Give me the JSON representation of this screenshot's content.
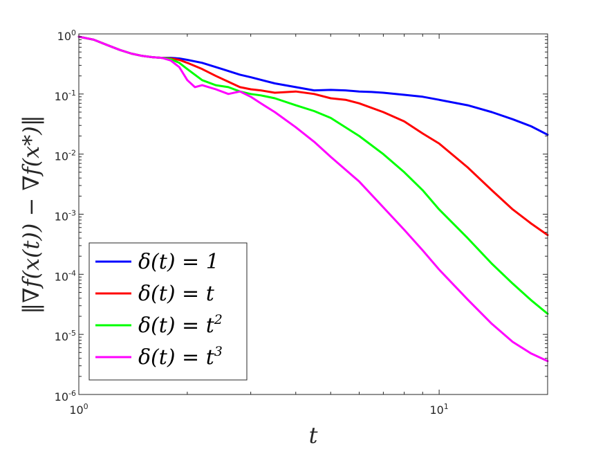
{
  "chart_data": {
    "type": "line",
    "xscale": "log",
    "yscale": "log",
    "xlim": [
      1,
      20
    ],
    "ylim": [
      1e-06,
      1
    ],
    "xlabel": "t",
    "ylabel": "‖∇f(x(t)) − ∇f(x*)‖",
    "grid": false,
    "legend_position": "bottom-left",
    "xticks": [
      {
        "value": 1,
        "base": "10",
        "exp": "0"
      },
      {
        "value": 10,
        "base": "10",
        "exp": "1"
      }
    ],
    "yticks": [
      {
        "value": 1,
        "base": "10",
        "exp": "0"
      },
      {
        "value": 0.1,
        "base": "10",
        "exp": "-1"
      },
      {
        "value": 0.01,
        "base": "10",
        "exp": "-2"
      },
      {
        "value": 0.001,
        "base": "10",
        "exp": "-3"
      },
      {
        "value": 0.0001,
        "base": "10",
        "exp": "-4"
      },
      {
        "value": 1e-05,
        "base": "10",
        "exp": "-5"
      },
      {
        "value": 1e-06,
        "base": "10",
        "exp": "-6"
      }
    ],
    "series": [
      {
        "name": "δ(t) = 1",
        "color": "#0000ff",
        "x": [
          1.0,
          1.1,
          1.2,
          1.3,
          1.4,
          1.5,
          1.6,
          1.7,
          1.8,
          1.9,
          2.0,
          2.2,
          2.5,
          2.8,
          3.0,
          3.5,
          4.0,
          4.5,
          5.0,
          5.5,
          6.0,
          6.5,
          7.0,
          8.0,
          9.0,
          10.0,
          12.0,
          14.0,
          16.0,
          18.0,
          20.0
        ],
        "y": [
          0.9,
          0.8,
          0.65,
          0.54,
          0.47,
          0.43,
          0.41,
          0.4,
          0.4,
          0.39,
          0.37,
          0.33,
          0.26,
          0.21,
          0.19,
          0.15,
          0.13,
          0.115,
          0.117,
          0.115,
          0.11,
          0.108,
          0.105,
          0.097,
          0.09,
          0.08,
          0.065,
          0.05,
          0.038,
          0.029,
          0.021
        ]
      },
      {
        "name": "δ(t) = t",
        "color": "#ff0000",
        "x": [
          1.0,
          1.1,
          1.2,
          1.3,
          1.4,
          1.5,
          1.6,
          1.7,
          1.8,
          1.9,
          2.0,
          2.2,
          2.4,
          2.6,
          2.8,
          3.0,
          3.2,
          3.5,
          4.0,
          4.5,
          5.0,
          5.5,
          6.0,
          7.0,
          8.0,
          9.0,
          10.0,
          12.0,
          14.0,
          16.0,
          18.0,
          20.0
        ],
        "y": [
          0.9,
          0.8,
          0.65,
          0.54,
          0.47,
          0.43,
          0.41,
          0.4,
          0.39,
          0.37,
          0.33,
          0.26,
          0.2,
          0.16,
          0.13,
          0.12,
          0.115,
          0.105,
          0.11,
          0.1,
          0.085,
          0.08,
          0.07,
          0.05,
          0.035,
          0.022,
          0.015,
          0.006,
          0.0025,
          0.0012,
          0.0007,
          0.00045
        ]
      },
      {
        "name": "δ(t) = t^2",
        "color": "#00ff00",
        "x": [
          1.0,
          1.1,
          1.2,
          1.3,
          1.4,
          1.5,
          1.6,
          1.7,
          1.8,
          1.9,
          2.0,
          2.2,
          2.4,
          2.6,
          2.8,
          3.0,
          3.2,
          3.5,
          4.0,
          4.5,
          5.0,
          6.0,
          7.0,
          8.0,
          9.0,
          10.0,
          12.0,
          14.0,
          16.0,
          18.0,
          20.0
        ],
        "y": [
          0.9,
          0.8,
          0.65,
          0.54,
          0.47,
          0.43,
          0.41,
          0.4,
          0.38,
          0.33,
          0.26,
          0.17,
          0.14,
          0.13,
          0.11,
          0.1,
          0.095,
          0.085,
          0.065,
          0.052,
          0.04,
          0.02,
          0.01,
          0.005,
          0.0025,
          0.0012,
          0.0004,
          0.00015,
          7e-05,
          3.7e-05,
          2.2e-05
        ]
      },
      {
        "name": "δ(t) = t^3",
        "color": "#ff00ff",
        "x": [
          1.0,
          1.1,
          1.2,
          1.3,
          1.4,
          1.5,
          1.6,
          1.7,
          1.8,
          1.9,
          2.0,
          2.1,
          2.2,
          2.4,
          2.6,
          2.8,
          3.0,
          3.2,
          3.5,
          4.0,
          4.5,
          5.0,
          6.0,
          7.0,
          8.0,
          9.0,
          10.0,
          12.0,
          14.0,
          16.0,
          18.0,
          20.0
        ],
        "y": [
          0.9,
          0.8,
          0.65,
          0.54,
          0.47,
          0.43,
          0.41,
          0.4,
          0.36,
          0.28,
          0.17,
          0.13,
          0.14,
          0.12,
          0.1,
          0.11,
          0.09,
          0.07,
          0.05,
          0.028,
          0.016,
          0.009,
          0.0035,
          0.0013,
          0.00055,
          0.00025,
          0.00012,
          3.8e-05,
          1.5e-05,
          7.5e-06,
          4.8e-06,
          3.6e-06
        ]
      }
    ]
  }
}
